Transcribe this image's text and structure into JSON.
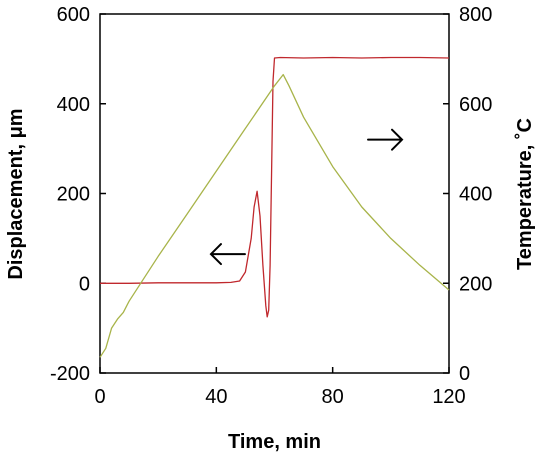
{
  "chart_data": {
    "type": "line",
    "xlabel": "Time, min",
    "ylabel_left": "Displacement, μm",
    "ylabel_right": "Temperature, ˚C",
    "xlim": [
      0,
      120
    ],
    "ylim_left": [
      -200,
      600
    ],
    "ylim_right": [
      0,
      800
    ],
    "x_ticks": [
      0,
      40,
      80,
      120
    ],
    "y_ticks_left": [
      -200,
      0,
      200,
      400,
      600
    ],
    "y_ticks_right": [
      0,
      200,
      400,
      600,
      800
    ],
    "grid": false,
    "series": [
      {
        "axis": "left",
        "color": "#c0282d",
        "x": [
          0,
          10,
          20,
          30,
          40,
          45,
          48,
          50,
          52,
          53,
          54,
          55,
          56,
          57,
          57.5,
          58,
          58.5,
          59,
          59.5,
          60,
          62,
          70,
          80,
          90,
          100,
          110,
          120
        ],
        "y": [
          0,
          0,
          1,
          1,
          1,
          2,
          5,
          25,
          100,
          170,
          205,
          150,
          40,
          -50,
          -75,
          -60,
          40,
          250,
          450,
          502,
          503,
          502,
          503,
          502,
          503,
          503,
          502
        ]
      },
      {
        "axis": "right",
        "color": "#a8b44a",
        "x": [
          0,
          2,
          4,
          6,
          8,
          10,
          15,
          20,
          30,
          40,
          50,
          60,
          63,
          65,
          70,
          80,
          90,
          100,
          110,
          120
        ],
        "y": [
          35,
          55,
          100,
          120,
          135,
          160,
          210,
          260,
          355,
          450,
          545,
          640,
          665,
          640,
          570,
          460,
          370,
          300,
          240,
          185
        ]
      }
    ],
    "annotations": [
      {
        "type": "arrow",
        "direction": "left",
        "x": 44,
        "y": 65,
        "axis": "left"
      },
      {
        "type": "arrow",
        "direction": "right",
        "x": 98,
        "y": 520,
        "axis": "right"
      }
    ]
  }
}
